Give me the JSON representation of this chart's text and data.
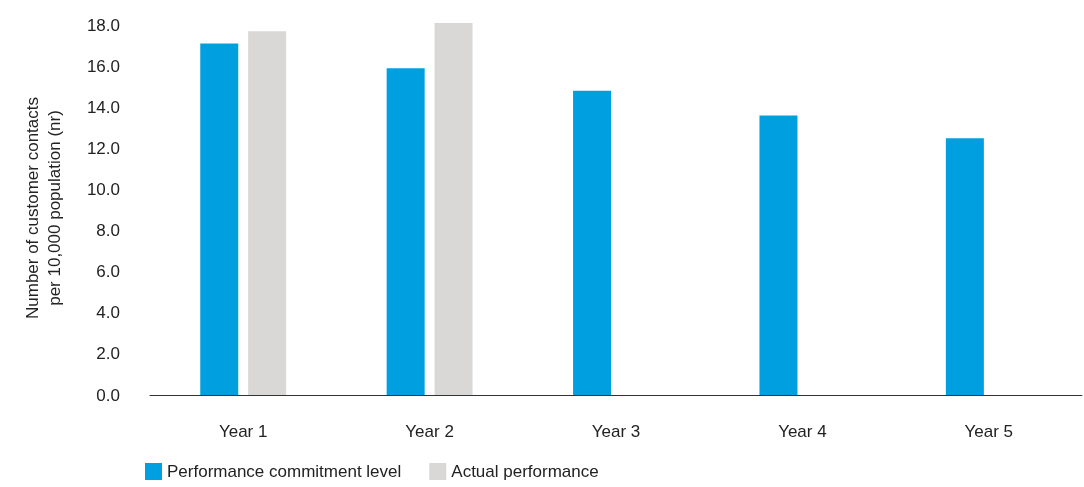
{
  "chart_data": {
    "type": "bar",
    "ylabel": "Number of customer contacts\nper 10,000 population (nr)",
    "categories": [
      "Year 1",
      "Year 2",
      "Year 3",
      "Year 4",
      "Year 5"
    ],
    "series": [
      {
        "name": "Performance commitment level",
        "color": "#009fdf",
        "values": [
          17.1,
          15.9,
          14.8,
          13.6,
          12.5
        ]
      },
      {
        "name": "Actual performance",
        "color": "#d9d8d6",
        "values": [
          17.7,
          18.1,
          null,
          null,
          null
        ]
      }
    ],
    "ylim": [
      0,
      18.2
    ],
    "yticks": [
      {
        "value": 0,
        "label": "0.0"
      },
      {
        "value": 2,
        "label": "2.0"
      },
      {
        "value": 4,
        "label": "4.0"
      },
      {
        "value": 6,
        "label": "6.0"
      },
      {
        "value": 8,
        "label": "8.0"
      },
      {
        "value": 10,
        "label": "10.0"
      },
      {
        "value": 12,
        "label": "12.0"
      },
      {
        "value": 14,
        "label": "14.0"
      },
      {
        "value": 16,
        "label": "16.0"
      },
      {
        "value": 18,
        "label": "18.0"
      }
    ],
    "grid": false,
    "legend": "bottom left"
  }
}
